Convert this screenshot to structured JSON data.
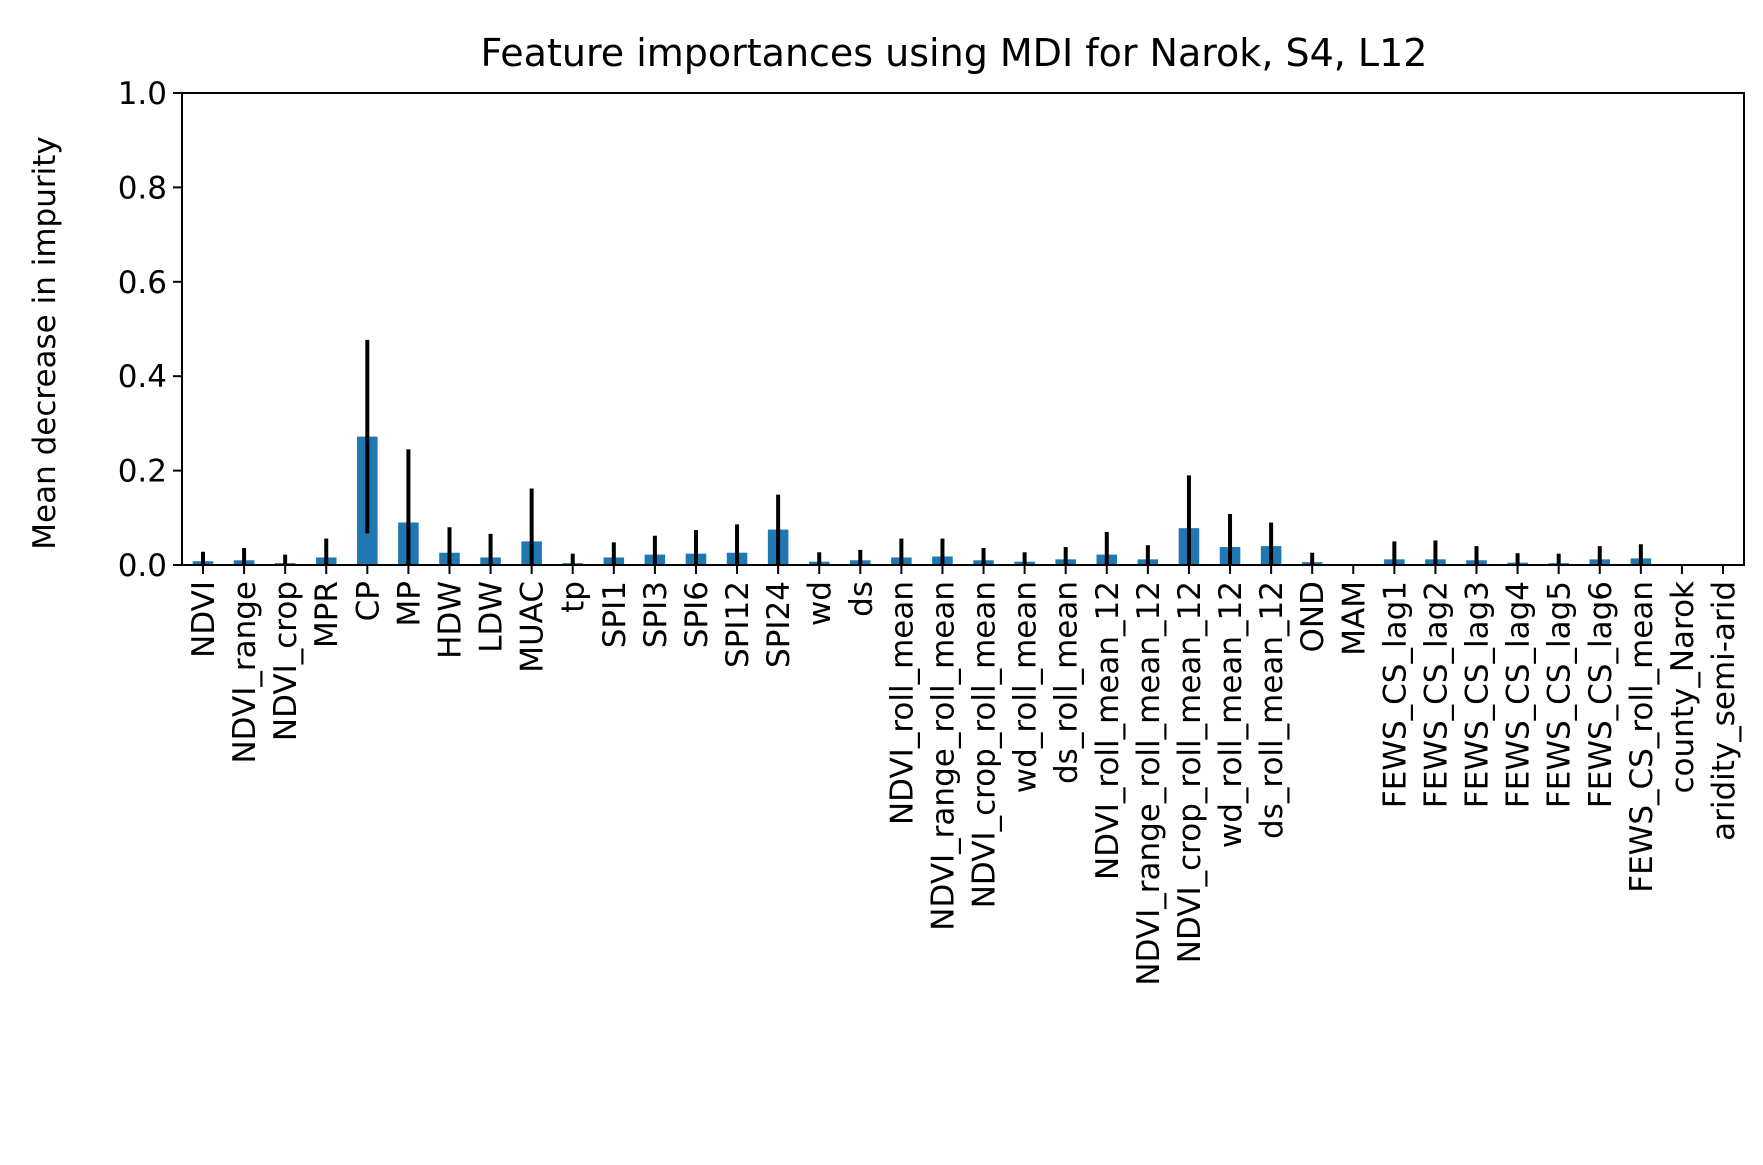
{
  "chart_data": {
    "type": "bar",
    "title": "Feature importances using MDI for Narok, S4, L12",
    "xlabel": "",
    "ylabel": "Mean decrease in impurity",
    "ylim": [
      0,
      1.0
    ],
    "yticks": [
      "0.0",
      "0.2",
      "0.4",
      "0.6",
      "0.8",
      "1.0"
    ],
    "ytick_values": [
      0.0,
      0.2,
      0.4,
      0.6,
      0.8,
      1.0
    ],
    "grid": false,
    "bar_color": "#1f77b4",
    "error_color": "#000000",
    "categories": [
      "NDVI",
      "NDVI_range",
      "NDVI_crop",
      "MPR",
      "CP",
      "MP",
      "HDW",
      "LDW",
      "MUAC",
      "tp",
      "SPI1",
      "SPI3",
      "SPI6",
      "SPI12",
      "SPI24",
      "wd",
      "ds",
      "NDVI_roll_mean",
      "NDVI_range_roll_mean",
      "NDVI_crop_roll_mean",
      "wd_roll_mean",
      "ds_roll_mean",
      "NDVI_roll_mean_12",
      "NDVI_range_roll_mean_12",
      "NDVI_crop_roll_mean_12",
      "wd_roll_mean_12",
      "ds_roll_mean_12",
      "OND",
      "MAM",
      "FEWS_CS_lag1",
      "FEWS_CS_lag2",
      "FEWS_CS_lag3",
      "FEWS_CS_lag4",
      "FEWS_CS_lag5",
      "FEWS_CS_lag6",
      "FEWS_CS_roll_mean",
      "county_Narok",
      "aridity_semi-arid"
    ],
    "values": [
      0.008,
      0.01,
      0.004,
      0.016,
      0.272,
      0.09,
      0.026,
      0.016,
      0.05,
      0.004,
      0.016,
      0.022,
      0.024,
      0.026,
      0.075,
      0.007,
      0.01,
      0.016,
      0.018,
      0.01,
      0.007,
      0.012,
      0.022,
      0.012,
      0.078,
      0.038,
      0.04,
      0.006,
      0.0,
      0.012,
      0.012,
      0.01,
      0.005,
      0.004,
      0.012,
      0.014,
      0.0,
      0.0
    ],
    "errors": [
      0.02,
      0.026,
      0.018,
      0.04,
      0.205,
      0.155,
      0.054,
      0.05,
      0.112,
      0.02,
      0.032,
      0.04,
      0.05,
      0.06,
      0.074,
      0.02,
      0.022,
      0.04,
      0.038,
      0.026,
      0.02,
      0.026,
      0.048,
      0.03,
      0.112,
      0.07,
      0.05,
      0.02,
      0.0,
      0.038,
      0.04,
      0.03,
      0.02,
      0.02,
      0.028,
      0.03,
      0.0,
      0.0
    ]
  }
}
